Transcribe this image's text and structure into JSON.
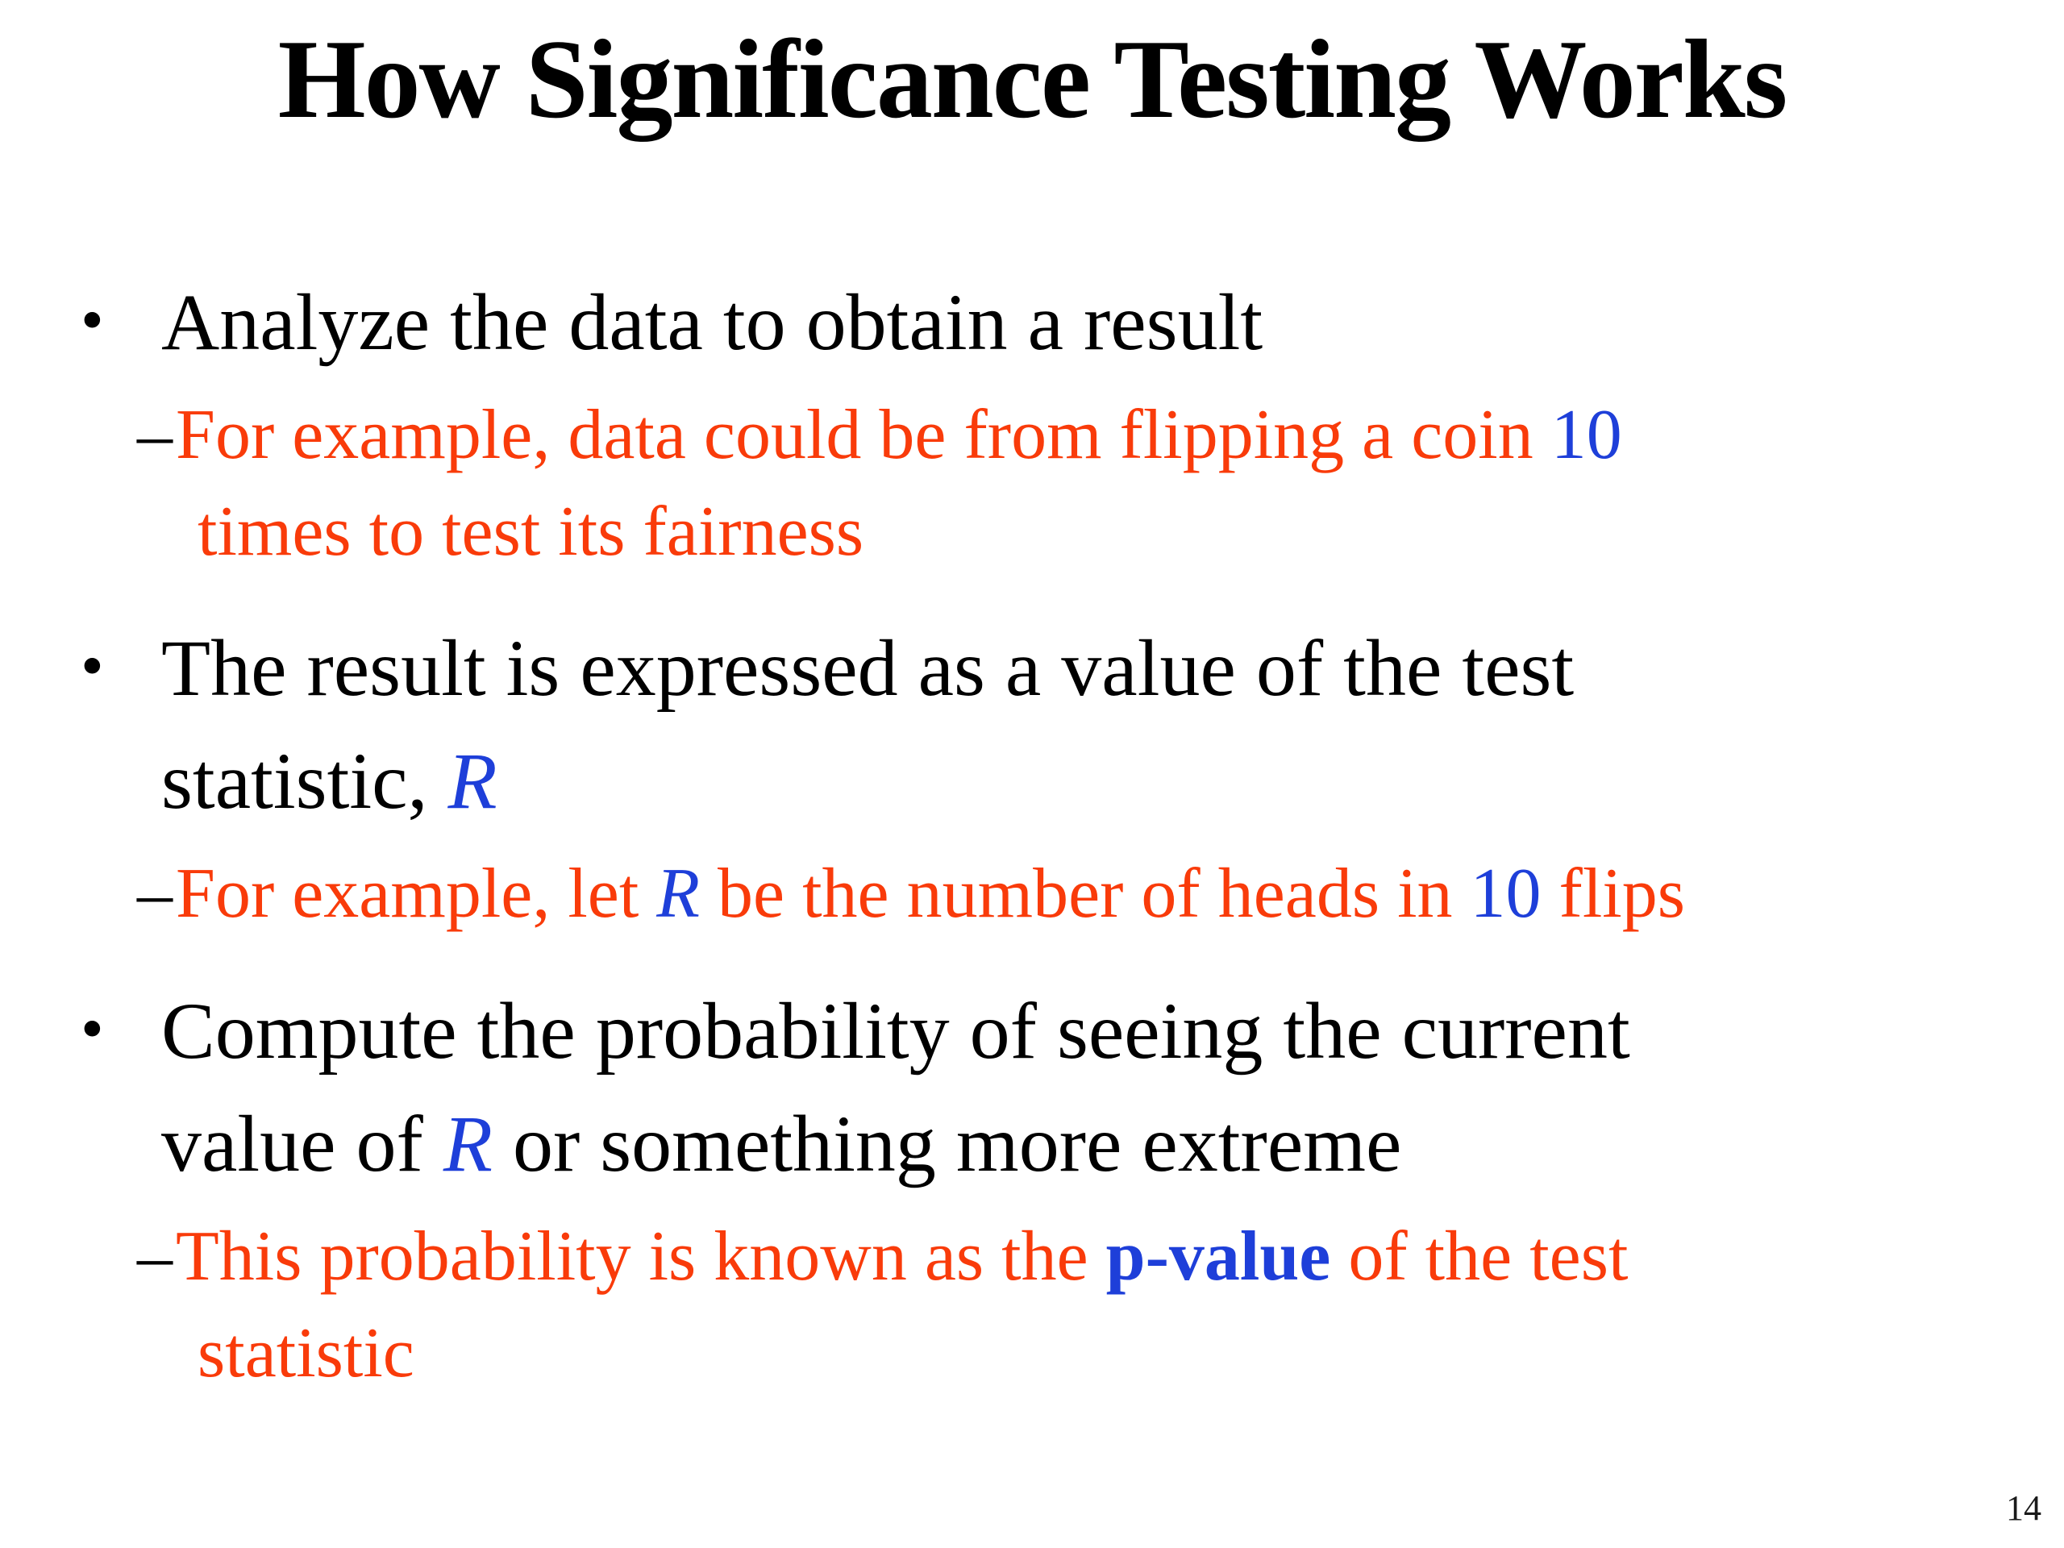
{
  "slide": {
    "title": "How Significance Testing Works",
    "page_number": "14",
    "colors": {
      "red": "#F93B0A",
      "blue": "#1E3FD9",
      "black": "#000000"
    },
    "markers": {
      "bullet": "•",
      "sub": "–"
    },
    "content": [
      {
        "type": "bullet",
        "lines": [
          {
            "segments": [
              {
                "text": "Analyze the data to obtain a result",
                "style": "black"
              }
            ]
          }
        ]
      },
      {
        "type": "sub",
        "lines": [
          {
            "segments": [
              {
                "text": "For example, data could be from flipping a coin ",
                "style": "red"
              },
              {
                "text": "10",
                "style": "blue"
              }
            ]
          },
          {
            "segments": [
              {
                "text": "times to test its fairness",
                "style": "red"
              }
            ]
          }
        ]
      },
      {
        "type": "bullet",
        "lines": [
          {
            "segments": [
              {
                "text": "The result is expressed as a value of the test",
                "style": "black"
              }
            ]
          },
          {
            "segments": [
              {
                "text": "statistic, ",
                "style": "black"
              },
              {
                "text": "R",
                "style": "blue-italic"
              }
            ]
          }
        ]
      },
      {
        "type": "sub",
        "lines": [
          {
            "segments": [
              {
                "text": "For example, let ",
                "style": "red"
              },
              {
                "text": "R",
                "style": "blue-italic"
              },
              {
                "text": " be the number of heads in ",
                "style": "red"
              },
              {
                "text": "10",
                "style": "blue"
              },
              {
                "text": " flips",
                "style": "red"
              }
            ]
          }
        ]
      },
      {
        "type": "bullet",
        "lines": [
          {
            "segments": [
              {
                "text": "Compute the probability of seeing the current",
                "style": "black"
              }
            ]
          },
          {
            "segments": [
              {
                "text": "value of ",
                "style": "black"
              },
              {
                "text": "R",
                "style": "blue-italic"
              },
              {
                "text": " or something more extreme",
                "style": "black"
              }
            ]
          }
        ]
      },
      {
        "type": "sub",
        "lines": [
          {
            "segments": [
              {
                "text": "This probability is known as the ",
                "style": "red"
              },
              {
                "text": "p-value",
                "style": "blue-bold"
              },
              {
                "text": " of the test",
                "style": "red"
              }
            ]
          },
          {
            "segments": [
              {
                "text": "statistic",
                "style": "red"
              }
            ]
          }
        ]
      }
    ]
  }
}
